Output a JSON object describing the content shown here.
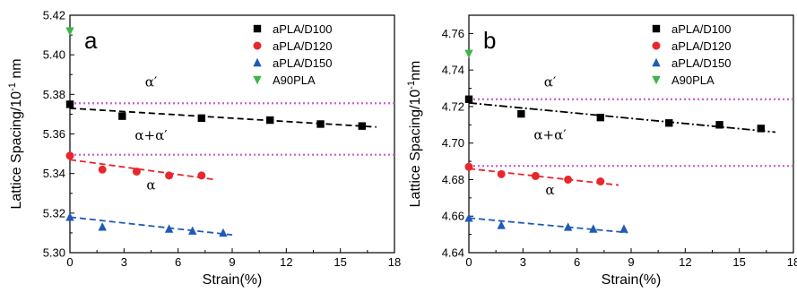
{
  "chart_data": [
    {
      "type": "scatter",
      "panel_label": "a",
      "xlabel": "Strain(%)",
      "ylabel": "Lattice Spacing/10",
      "ylabel_exponent": "-1",
      "ylabel_unit": " nm",
      "xlim": [
        0,
        18
      ],
      "ylim": [
        5.3,
        5.42
      ],
      "xticks": [
        0,
        3,
        6,
        9,
        12,
        15,
        18
      ],
      "yticks": [
        5.3,
        5.32,
        5.34,
        5.36,
        5.38,
        5.4,
        5.42
      ],
      "ytick_decimals": 2,
      "legend_position": "top-right",
      "series": [
        {
          "name": "aPLA/D100",
          "marker": "square",
          "color": "#000000",
          "x": [
            0,
            2.9,
            7.3,
            11.1,
            13.9,
            16.2
          ],
          "y": [
            5.375,
            5.369,
            5.368,
            5.367,
            5.365,
            5.364
          ],
          "fit": {
            "x": [
              0,
              17.0
            ],
            "y": [
              5.373,
              5.3635
            ],
            "dash": "dashed"
          }
        },
        {
          "name": "aPLA/D120",
          "marker": "circle",
          "color": "#e8262d",
          "x": [
            0,
            1.8,
            3.7,
            5.5,
            7.3
          ],
          "y": [
            5.349,
            5.342,
            5.341,
            5.339,
            5.339
          ],
          "fit": {
            "x": [
              0,
              8.0
            ],
            "y": [
              5.347,
              5.337
            ],
            "dash": "dashed"
          }
        },
        {
          "name": "aPLA/D150",
          "marker": "triangle-up",
          "color": "#1e5bb8",
          "x": [
            0,
            1.8,
            5.5,
            6.8,
            8.5
          ],
          "y": [
            5.318,
            5.313,
            5.312,
            5.311,
            5.31
          ],
          "fit": {
            "x": [
              0,
              9.0
            ],
            "y": [
              5.318,
              5.309
            ],
            "dash": "dashed"
          }
        },
        {
          "name": "A90PLA",
          "marker": "triangle-down",
          "color": "#3cb54a",
          "x": [
            0
          ],
          "y": [
            5.412
          ]
        }
      ],
      "hlines": [
        5.3755,
        5.3495
      ],
      "hline_color": "#c95fd0",
      "annotations": [
        {
          "text": "α′",
          "x": 4.5,
          "y": 5.384
        },
        {
          "text": "α+α′",
          "x": 4.5,
          "y": 5.357
        },
        {
          "text": "α",
          "x": 4.5,
          "y": 5.332
        }
      ]
    },
    {
      "type": "scatter",
      "panel_label": "b",
      "xlabel": "Strain(%)",
      "ylabel": "Lattice Spacing/10",
      "ylabel_exponent": "-1",
      "ylabel_unit": "nm",
      "xlim": [
        0,
        18
      ],
      "ylim": [
        4.64,
        4.77
      ],
      "xticks": [
        0,
        3,
        6,
        9,
        12,
        15,
        18
      ],
      "yticks": [
        4.64,
        4.66,
        4.68,
        4.7,
        4.72,
        4.74,
        4.76
      ],
      "ytick_decimals": 2,
      "legend_position": "top-right",
      "series": [
        {
          "name": "aPLA/D100",
          "marker": "square",
          "color": "#000000",
          "x": [
            0,
            2.9,
            7.3,
            11.1,
            13.9,
            16.2
          ],
          "y": [
            4.724,
            4.716,
            4.714,
            4.711,
            4.71,
            4.708
          ],
          "fit": {
            "x": [
              0,
              17.0
            ],
            "y": [
              4.722,
              4.706
            ],
            "dash": "dashdot"
          }
        },
        {
          "name": "aPLA/D120",
          "marker": "circle",
          "color": "#e8262d",
          "x": [
            0,
            1.8,
            3.7,
            5.5,
            7.3
          ],
          "y": [
            4.687,
            4.683,
            4.682,
            4.68,
            4.679
          ],
          "fit": {
            "x": [
              0,
              8.3
            ],
            "y": [
              4.686,
              4.677
            ],
            "dash": "dashed"
          }
        },
        {
          "name": "aPLA/D150",
          "marker": "triangle-up",
          "color": "#1e5bb8",
          "x": [
            0,
            1.8,
            5.5,
            6.9,
            8.6
          ],
          "y": [
            4.659,
            4.655,
            4.654,
            4.653,
            4.653
          ],
          "fit": {
            "x": [
              0,
              8.8
            ],
            "y": [
              4.659,
              4.651
            ],
            "dash": "dashed"
          }
        },
        {
          "name": "A90PLA",
          "marker": "triangle-down",
          "color": "#3cb54a",
          "x": [
            0
          ],
          "y": [
            4.749
          ]
        }
      ],
      "hlines": [
        4.724,
        4.6875
      ],
      "hline_color": "#c95fd0",
      "annotations": [
        {
          "text": "α′",
          "x": 4.5,
          "y": 4.731
        },
        {
          "text": "α+α′",
          "x": 4.5,
          "y": 4.702
        },
        {
          "text": "α",
          "x": 4.5,
          "y": 4.672
        }
      ]
    }
  ]
}
